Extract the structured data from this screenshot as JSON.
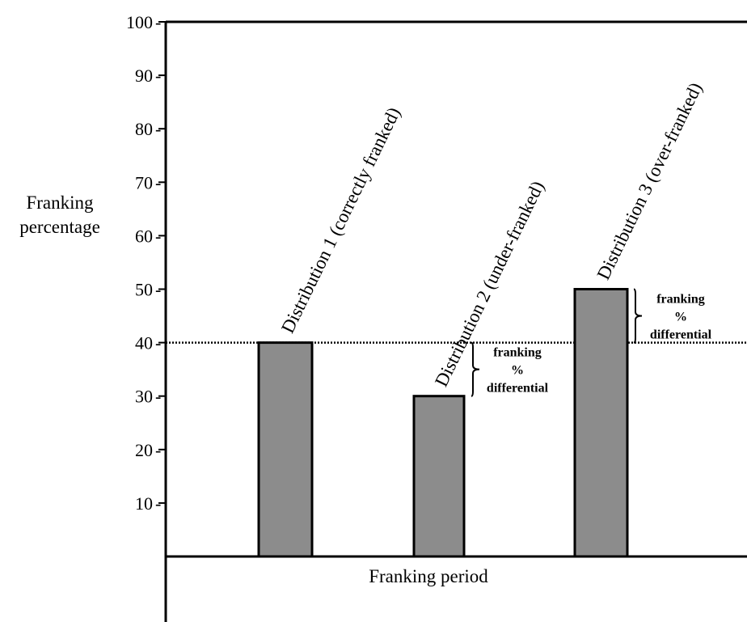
{
  "chart_data": {
    "type": "bar",
    "categories": [
      "Distribution 1 (correctly franked)",
      "Distribution 2 (under-franked)",
      "Distribution 3 (over-franked)"
    ],
    "values": [
      40,
      30,
      50
    ],
    "ylabel_lines": [
      "Franking",
      "percentage"
    ],
    "xlabel": "Franking period",
    "yticks": [
      10,
      20,
      30,
      40,
      50,
      60,
      70,
      80,
      90,
      100
    ],
    "ylim": [
      0,
      100
    ],
    "reference_line": 40,
    "annotations": [
      {
        "lines": [
          "franking",
          "%",
          "differential"
        ],
        "from": 30,
        "to": 40
      },
      {
        "lines": [
          "franking",
          "%",
          "differential"
        ],
        "from": 40,
        "to": 50
      }
    ],
    "colors": {
      "bar_fill": "#8c8c8c",
      "bar_stroke": "#000000"
    }
  }
}
